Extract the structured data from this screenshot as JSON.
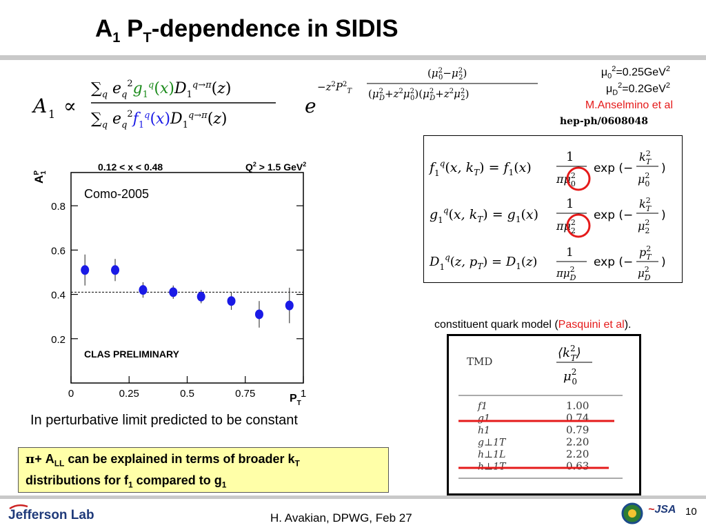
{
  "slide": {
    "title_main": "A",
    "title_sub1": "1",
    "title_mid": " P",
    "title_sub2": "T",
    "title_end": "-dependence in SIDIS",
    "slide_number": "10"
  },
  "params": {
    "mu0": "μ",
    "mu0_sub": "0",
    "mu0_val": "=0.25GeV",
    "muD": "μ",
    "muD_sub": "D",
    "muD_val": "=0.2GeV",
    "sq": "2",
    "author": "M.Anselmino et al",
    "ref": "hep-ph/0608048"
  },
  "formula": {
    "lhs": "A",
    "lhs_sub": "1",
    "prop": "∝",
    "num": "∑q e²q g1q(x) D1q→π(z)",
    "den": "∑q e²q f1q(x) D1q→π(z)",
    "exp_base": "e",
    "exp_exponent": "−z²P²T (μ²0−μ²2) / ((μ²D+z²μ²0)(μ²D+z²μ²2))"
  },
  "tmd_box": {
    "row1": "f1q(x,kT) = f1(x) · 1/(πμ²0) · exp(−k²T/μ²0)",
    "row2": "g1q(x,kT) = g1(x) · 1/(πμ²2) · exp(−k²T/μ²2)",
    "row3": "D1q(z,pT) = D1(z) · 1/(πμ²D) · exp(−p²T/μ²D)"
  },
  "chart_header": {
    "xrange": "0.12 < x < 0.48",
    "q2": "Q",
    "q2_sup": "2",
    "q2_rest": " > 1.5 GeV",
    "q2_sup2": "2",
    "como": "Como-2005",
    "prelim": "CLAS PRELIMINARY"
  },
  "chart_data": {
    "type": "scatter",
    "x": [
      0.06,
      0.19,
      0.31,
      0.44,
      0.56,
      0.69,
      0.81,
      0.94
    ],
    "y": [
      0.51,
      0.51,
      0.42,
      0.41,
      0.39,
      0.37,
      0.31,
      0.35
    ],
    "yerr": [
      0.07,
      0.05,
      0.035,
      0.03,
      0.03,
      0.04,
      0.06,
      0.08
    ],
    "reference_line_y": 0.41,
    "xlim": [
      0,
      1
    ],
    "ylim": [
      0,
      0.95
    ],
    "xticks": [
      "0",
      "0.25",
      "0.5",
      "0.75",
      "1"
    ],
    "yticks": [
      "0.2",
      "0.4",
      "0.6",
      "0.8"
    ],
    "xlabel": "P",
    "xlabel_sub": "T",
    "ylabel": "A",
    "ylabel_sup": "P",
    "ylabel_sub": "1",
    "color": "#1a1ae6"
  },
  "notes": {
    "perturbative": "In perturbative limit predicted to be constant",
    "explain_line1_a": "π",
    "explain_line1_b": "+ A",
    "explain_line1_sub": "LL",
    "explain_line1_c": " can be explained in terms of broader k",
    "explain_line1_sub2": "T",
    "explain_line2_a": "distributions for f",
    "explain_line2_sub": "1",
    "explain_line2_b": " compared to g",
    "explain_line2_sub2": "1"
  },
  "quark_model": {
    "caption_a": "constituent quark model (",
    "caption_red": "Pasquini et al",
    "caption_b": ").",
    "col_head": "TMD",
    "ratio_head": "⟨k²T⟩ / μ²0",
    "rows": [
      {
        "name": "f1",
        "value": "1.00"
      },
      {
        "name": "g1",
        "value": "0.74"
      },
      {
        "name": "h1",
        "value": "0.79"
      },
      {
        "name": "g⊥1T",
        "value": "2.20"
      },
      {
        "name": "h⊥1L",
        "value": "2.20"
      },
      {
        "name": "h⊥1T",
        "value": "0.63"
      }
    ]
  },
  "footer": {
    "logo": "Jefferson Lab",
    "presenter": "H. Avakian, DPWG, Feb 27",
    "jsa": "JSA"
  }
}
